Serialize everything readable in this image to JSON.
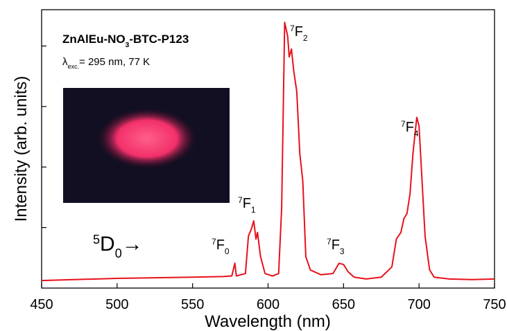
{
  "chart_data": {
    "type": "line",
    "x_label": "Wavelength (nm)",
    "y_label": "Intensity (arb. units)",
    "xlim": [
      450,
      750
    ],
    "xticks": [
      450,
      500,
      550,
      600,
      650,
      700,
      750
    ],
    "ylim": [
      0,
      4.6
    ],
    "yticks": [
      1,
      2,
      3,
      4
    ],
    "series": [
      {
        "color": "#e8101a",
        "x": [
          450,
          500,
          550,
          570,
          576,
          578,
          579,
          585,
          587,
          589,
          590.5,
          592,
          593,
          595,
          598,
          603,
          607,
          609,
          611,
          613,
          614,
          615.5,
          617,
          619,
          621,
          623,
          625,
          628,
          635,
          643,
          647,
          650,
          653,
          657,
          665,
          675,
          682,
          685,
          688,
          690,
          692,
          694,
          696,
          698.5,
          700,
          702,
          704,
          707,
          710,
          720,
          735,
          750
        ],
        "values": [
          0.125,
          0.16,
          0.18,
          0.19,
          0.2,
          0.41,
          0.2,
          0.24,
          0.86,
          0.98,
          1.11,
          0.81,
          0.92,
          0.52,
          0.24,
          0.2,
          0.24,
          1.32,
          4.39,
          4.16,
          3.82,
          3.95,
          3.59,
          3.25,
          2.23,
          1.77,
          0.52,
          0.3,
          0.22,
          0.24,
          0.41,
          0.39,
          0.27,
          0.18,
          0.15,
          0.18,
          0.35,
          0.81,
          0.92,
          1.15,
          1.23,
          1.55,
          2.23,
          2.82,
          2.68,
          1.77,
          0.86,
          0.3,
          0.18,
          0.15,
          0.14,
          0.15
        ]
      }
    ],
    "annotations": [
      {
        "parts": [
          {
            "text": "ZnAlEu-NO"
          },
          {
            "text": "3",
            "style": "sub"
          },
          {
            "text": "-BTC-P123"
          }
        ]
      },
      {
        "parts": [
          {
            "text": "λ"
          },
          {
            "text": "exc.",
            "style": "sub"
          },
          {
            "text": "= 295 nm, 77 K"
          }
        ]
      },
      {
        "parts": [
          {
            "text": "5",
            "style": "sup"
          },
          {
            "text": "D"
          },
          {
            "text": "0",
            "style": "sub"
          },
          {
            "text": "→"
          }
        ]
      },
      {
        "parts": [
          {
            "text": "7",
            "style": "sup"
          },
          {
            "text": "F"
          },
          {
            "text": "0",
            "style": "sub"
          }
        ]
      },
      {
        "parts": [
          {
            "text": "7",
            "style": "sup"
          },
          {
            "text": "F"
          },
          {
            "text": "1",
            "style": "sub"
          }
        ]
      },
      {
        "parts": [
          {
            "text": "7",
            "style": "sup"
          },
          {
            "text": "F"
          },
          {
            "text": "2",
            "style": "sub"
          }
        ]
      },
      {
        "parts": [
          {
            "text": "7",
            "style": "sup"
          },
          {
            "text": "F"
          },
          {
            "text": "3",
            "style": "sub"
          }
        ]
      },
      {
        "parts": [
          {
            "text": "7",
            "style": "sup"
          },
          {
            "text": "F"
          },
          {
            "text": "4",
            "style": "sub"
          }
        ]
      }
    ]
  }
}
